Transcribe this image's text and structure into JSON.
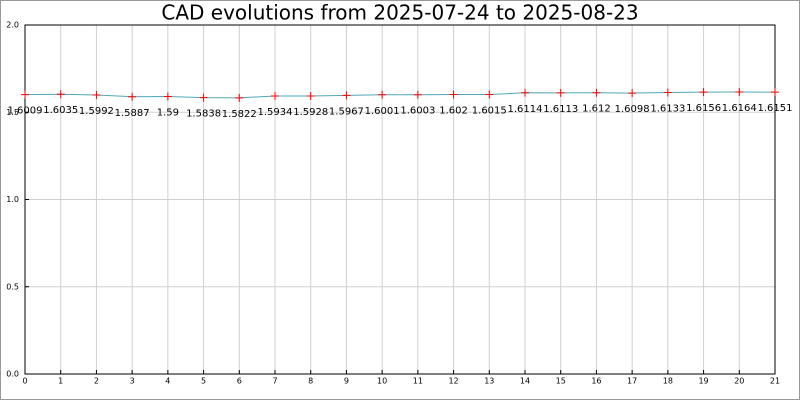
{
  "chart_data": {
    "type": "line",
    "title": "CAD evolutions from 2025-07-24 to 2025-08-23",
    "x": [
      0,
      1,
      2,
      3,
      4,
      5,
      6,
      7,
      8,
      9,
      10,
      11,
      12,
      13,
      14,
      15,
      16,
      17,
      18,
      19,
      20,
      21
    ],
    "series": [
      {
        "color": "#4fa8b8",
        "marker_color": "#ff0000",
        "values": [
          1.6009,
          1.6035,
          1.5992,
          1.5887,
          1.59,
          1.5838,
          1.5822,
          1.5934,
          1.5928,
          1.5967,
          1.6001,
          1.6003,
          1.602,
          1.6015,
          1.6114,
          1.6113,
          1.612,
          1.6098,
          1.6133,
          1.6156,
          1.6164,
          1.6151
        ]
      }
    ],
    "xlim": [
      0,
      21
    ],
    "xticks": [
      0,
      1,
      2,
      3,
      4,
      5,
      6,
      7,
      8,
      9,
      10,
      11,
      12,
      13,
      14,
      15,
      16,
      17,
      18,
      19,
      20,
      21
    ],
    "ylim": [
      0,
      2
    ],
    "yticks": [
      {
        "value": 0,
        "label": "0.0"
      },
      0.5,
      {
        "value": 1,
        "label": "1.0"
      },
      1.5,
      {
        "value": 2,
        "label": "2.0"
      }
    ],
    "grid": true
  }
}
